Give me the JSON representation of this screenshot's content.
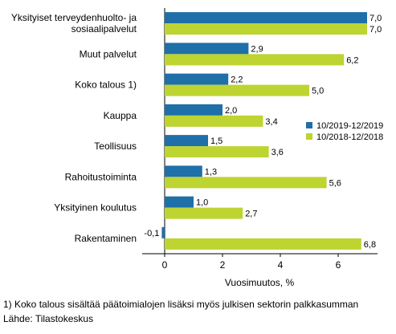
{
  "chart_data": {
    "type": "bar",
    "orientation": "horizontal",
    "categories": [
      [
        "Yksityiset terveydenhuolto- ja",
        "sosiaalipalvelut"
      ],
      [
        "Muut palvelut"
      ],
      [
        "Koko talous 1)"
      ],
      [
        "Kauppa"
      ],
      [
        "Teollisuus"
      ],
      [
        "Rahoitustoiminta"
      ],
      [
        "Yksityinen koulutus"
      ],
      [
        "Rakentaminen"
      ]
    ],
    "series": [
      {
        "name": "10/2019-12/2019",
        "color": "#1f6fa9",
        "values": [
          7.0,
          2.9,
          2.2,
          2.0,
          1.5,
          1.3,
          1.0,
          -0.1
        ],
        "labels": [
          "7,0",
          "2,9",
          "2,2",
          "2,0",
          "1,5",
          "1,3",
          "1,0",
          "-0,1"
        ]
      },
      {
        "name": "10/2018-12/2018",
        "color": "#bdd431",
        "values": [
          7.0,
          6.2,
          5.0,
          3.4,
          3.6,
          5.6,
          2.7,
          6.8
        ],
        "labels": [
          "7,0",
          "6,2",
          "5,0",
          "3,4",
          "3,6",
          "5,6",
          "2,7",
          "6,8"
        ]
      }
    ],
    "xlabel": "Vuosimuutos, %",
    "ylabel": "",
    "xlim": [
      -0.8,
      7.6
    ],
    "xticks": [
      0,
      2,
      4,
      6
    ],
    "xtick_labels": [
      "0",
      "2",
      "4",
      "6"
    ],
    "grid": false,
    "legend_position": "right"
  },
  "footnotes": {
    "note": "1) Koko talous sisältää päätoimialojen lisäksi myös julkisen sektorin palkkasumman",
    "source": "Lähde: Tilastokeskus"
  }
}
